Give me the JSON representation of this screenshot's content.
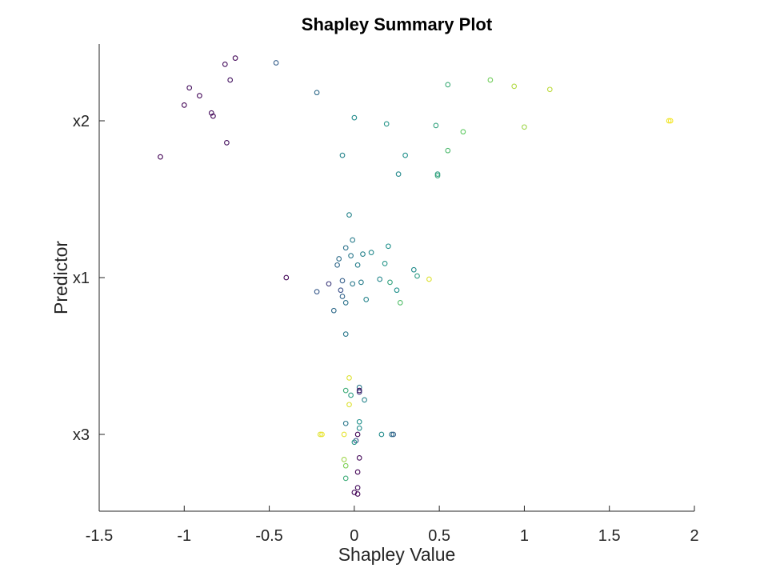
{
  "chart_data": {
    "type": "scatter",
    "title": "Shapley Summary Plot",
    "xlabel": "Shapley Value",
    "ylabel": "Predictor",
    "xlim": [
      -1.5,
      2
    ],
    "xticks": [
      -1.5,
      -1,
      -0.5,
      0,
      0.5,
      1,
      1.5,
      2
    ],
    "xtick_labels": [
      "-1.5",
      "-1",
      "-0.5",
      "0",
      "0.5",
      "1",
      "1.5",
      "2"
    ],
    "categories": [
      "x2",
      "x1",
      "x3"
    ],
    "grid": false,
    "legend": "none",
    "colormap": "viridis (marker color encodes predictor value, low = purple, high = yellow)",
    "points": [
      {
        "predictor": "x2",
        "x": -0.7,
        "y": 0.4,
        "c": 0.02
      },
      {
        "predictor": "x2",
        "x": -0.76,
        "y": 0.36,
        "c": 0.03
      },
      {
        "predictor": "x2",
        "x": -0.46,
        "y": 0.37,
        "c": 0.3
      },
      {
        "predictor": "x2",
        "x": -0.73,
        "y": 0.26,
        "c": 0.05
      },
      {
        "predictor": "x2",
        "x": -0.97,
        "y": 0.21,
        "c": 0.04
      },
      {
        "predictor": "x2",
        "x": -0.91,
        "y": 0.16,
        "c": 0.02
      },
      {
        "predictor": "x2",
        "x": -1.0,
        "y": 0.1,
        "c": 0.01
      },
      {
        "predictor": "x2",
        "x": -0.84,
        "y": 0.05,
        "c": 0.03
      },
      {
        "predictor": "x2",
        "x": -0.83,
        "y": 0.03,
        "c": 0.02
      },
      {
        "predictor": "x2",
        "x": -0.75,
        "y": -0.14,
        "c": 0.04
      },
      {
        "predictor": "x2",
        "x": -1.14,
        "y": -0.23,
        "c": 0.01
      },
      {
        "predictor": "x2",
        "x": -0.22,
        "y": 0.18,
        "c": 0.35
      },
      {
        "predictor": "x2",
        "x": 0.0,
        "y": 0.02,
        "c": 0.48
      },
      {
        "predictor": "x2",
        "x": 0.19,
        "y": -0.02,
        "c": 0.52
      },
      {
        "predictor": "x2",
        "x": -0.07,
        "y": -0.22,
        "c": 0.45
      },
      {
        "predictor": "x2",
        "x": 0.3,
        "y": -0.22,
        "c": 0.5
      },
      {
        "predictor": "x2",
        "x": 0.26,
        "y": -0.34,
        "c": 0.47
      },
      {
        "predictor": "x2",
        "x": 0.49,
        "y": -0.34,
        "c": 0.55
      },
      {
        "predictor": "x2",
        "x": 0.49,
        "y": -0.35,
        "c": 0.6
      },
      {
        "predictor": "x2",
        "x": 0.55,
        "y": 0.23,
        "c": 0.62
      },
      {
        "predictor": "x2",
        "x": 0.48,
        "y": -0.03,
        "c": 0.58
      },
      {
        "predictor": "x2",
        "x": 0.55,
        "y": -0.19,
        "c": 0.68
      },
      {
        "predictor": "x2",
        "x": 0.64,
        "y": -0.07,
        "c": 0.75
      },
      {
        "predictor": "x2",
        "x": 0.8,
        "y": 0.26,
        "c": 0.78
      },
      {
        "predictor": "x2",
        "x": 0.94,
        "y": 0.22,
        "c": 0.88
      },
      {
        "predictor": "x2",
        "x": 1.0,
        "y": -0.04,
        "c": 0.85
      },
      {
        "predictor": "x2",
        "x": 1.15,
        "y": 0.2,
        "c": 0.9
      },
      {
        "predictor": "x2",
        "x": 1.85,
        "y": 0.0,
        "c": 0.97
      },
      {
        "predictor": "x2",
        "x": 1.86,
        "y": 0.0,
        "c": 0.99
      },
      {
        "predictor": "x1",
        "x": -0.03,
        "y": 0.4,
        "c": 0.45
      },
      {
        "predictor": "x1",
        "x": -0.01,
        "y": 0.24,
        "c": 0.42
      },
      {
        "predictor": "x1",
        "x": -0.05,
        "y": 0.19,
        "c": 0.38
      },
      {
        "predictor": "x1",
        "x": 0.2,
        "y": 0.2,
        "c": 0.5
      },
      {
        "predictor": "x1",
        "x": -0.09,
        "y": 0.12,
        "c": 0.36
      },
      {
        "predictor": "x1",
        "x": -0.02,
        "y": 0.14,
        "c": 0.4
      },
      {
        "predictor": "x1",
        "x": 0.05,
        "y": 0.15,
        "c": 0.44
      },
      {
        "predictor": "x1",
        "x": 0.1,
        "y": 0.16,
        "c": 0.47
      },
      {
        "predictor": "x1",
        "x": -0.1,
        "y": 0.08,
        "c": 0.34
      },
      {
        "predictor": "x1",
        "x": 0.02,
        "y": 0.08,
        "c": 0.43
      },
      {
        "predictor": "x1",
        "x": 0.18,
        "y": 0.09,
        "c": 0.52
      },
      {
        "predictor": "x1",
        "x": 0.35,
        "y": 0.05,
        "c": 0.48
      },
      {
        "predictor": "x1",
        "x": 0.37,
        "y": 0.01,
        "c": 0.55
      },
      {
        "predictor": "x1",
        "x": -0.4,
        "y": 0.0,
        "c": 0.02
      },
      {
        "predictor": "x1",
        "x": -0.07,
        "y": -0.02,
        "c": 0.3
      },
      {
        "predictor": "x1",
        "x": 0.04,
        "y": -0.03,
        "c": 0.42
      },
      {
        "predictor": "x1",
        "x": 0.15,
        "y": -0.01,
        "c": 0.46
      },
      {
        "predictor": "x1",
        "x": 0.21,
        "y": -0.03,
        "c": 0.58
      },
      {
        "predictor": "x1",
        "x": 0.44,
        "y": -0.01,
        "c": 0.95
      },
      {
        "predictor": "x1",
        "x": -0.15,
        "y": -0.04,
        "c": 0.18
      },
      {
        "predictor": "x1",
        "x": -0.01,
        "y": -0.04,
        "c": 0.4
      },
      {
        "predictor": "x1",
        "x": -0.22,
        "y": -0.09,
        "c": 0.28
      },
      {
        "predictor": "x1",
        "x": -0.08,
        "y": -0.08,
        "c": 0.25
      },
      {
        "predictor": "x1",
        "x": 0.25,
        "y": -0.08,
        "c": 0.5
      },
      {
        "predictor": "x1",
        "x": -0.07,
        "y": -0.12,
        "c": 0.32
      },
      {
        "predictor": "x1",
        "x": 0.07,
        "y": -0.14,
        "c": 0.45
      },
      {
        "predictor": "x1",
        "x": -0.05,
        "y": -0.16,
        "c": 0.38
      },
      {
        "predictor": "x1",
        "x": 0.27,
        "y": -0.16,
        "c": 0.7
      },
      {
        "predictor": "x1",
        "x": -0.12,
        "y": -0.21,
        "c": 0.35
      },
      {
        "predictor": "x1",
        "x": -0.05,
        "y": -0.36,
        "c": 0.4
      },
      {
        "predictor": "x3",
        "x": -0.03,
        "y": 0.36,
        "c": 0.95
      },
      {
        "predictor": "x3",
        "x": 0.03,
        "y": 0.3,
        "c": 0.4
      },
      {
        "predictor": "x3",
        "x": 0.03,
        "y": 0.28,
        "c": 0.02
      },
      {
        "predictor": "x3",
        "x": 0.03,
        "y": 0.27,
        "c": 0.2
      },
      {
        "predictor": "x3",
        "x": -0.05,
        "y": 0.28,
        "c": 0.62
      },
      {
        "predictor": "x3",
        "x": -0.02,
        "y": 0.25,
        "c": 0.55
      },
      {
        "predictor": "x3",
        "x": 0.06,
        "y": 0.22,
        "c": 0.45
      },
      {
        "predictor": "x3",
        "x": -0.03,
        "y": 0.19,
        "c": 0.95
      },
      {
        "predictor": "x3",
        "x": -0.05,
        "y": 0.07,
        "c": 0.4
      },
      {
        "predictor": "x3",
        "x": 0.03,
        "y": 0.08,
        "c": 0.5
      },
      {
        "predictor": "x3",
        "x": 0.03,
        "y": 0.04,
        "c": 0.48
      },
      {
        "predictor": "x3",
        "x": -0.2,
        "y": 0.0,
        "c": 0.95
      },
      {
        "predictor": "x3",
        "x": -0.19,
        "y": 0.0,
        "c": 0.97
      },
      {
        "predictor": "x3",
        "x": -0.06,
        "y": 0.0,
        "c": 0.96
      },
      {
        "predictor": "x3",
        "x": 0.02,
        "y": 0.0,
        "c": 0.02
      },
      {
        "predictor": "x3",
        "x": 0.16,
        "y": 0.0,
        "c": 0.48
      },
      {
        "predictor": "x3",
        "x": 0.22,
        "y": 0.0,
        "c": 0.4
      },
      {
        "predictor": "x3",
        "x": 0.23,
        "y": 0.0,
        "c": 0.3
      },
      {
        "predictor": "x3",
        "x": 0.01,
        "y": -0.04,
        "c": 0.25
      },
      {
        "predictor": "x3",
        "x": 0.0,
        "y": -0.05,
        "c": 0.52
      },
      {
        "predictor": "x3",
        "x": 0.03,
        "y": -0.15,
        "c": 0.02
      },
      {
        "predictor": "x3",
        "x": -0.06,
        "y": -0.16,
        "c": 0.85
      },
      {
        "predictor": "x3",
        "x": -0.05,
        "y": -0.2,
        "c": 0.8
      },
      {
        "predictor": "x3",
        "x": 0.02,
        "y": -0.24,
        "c": 0.01
      },
      {
        "predictor": "x3",
        "x": -0.05,
        "y": -0.28,
        "c": 0.62
      },
      {
        "predictor": "x3",
        "x": 0.02,
        "y": -0.34,
        "c": 0.03
      },
      {
        "predictor": "x3",
        "x": 0.0,
        "y": -0.37,
        "c": 0.02
      },
      {
        "predictor": "x3",
        "x": 0.02,
        "y": -0.38,
        "c": 0.01
      }
    ]
  }
}
